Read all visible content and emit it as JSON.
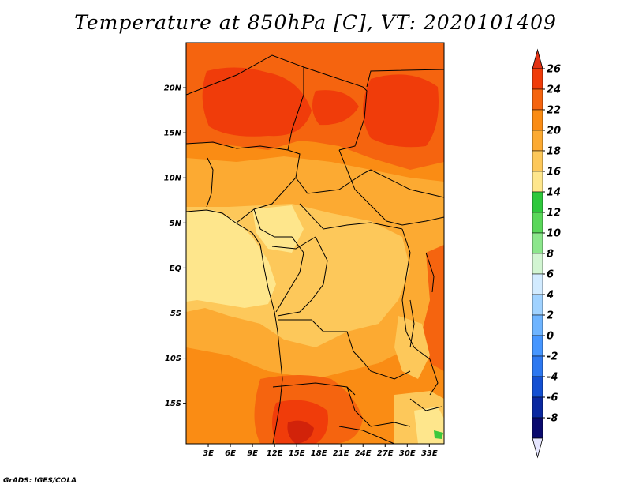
{
  "title": "Temperature at 850hPa [C], VT: 2020101409",
  "credit": "GrADS: IGES/COLA",
  "map": {
    "lon_range": [
      0,
      35
    ],
    "lat_range": [
      -19.5,
      25
    ],
    "lon_ticks": [
      {
        "value": 3,
        "label": "3E"
      },
      {
        "value": 6,
        "label": "6E"
      },
      {
        "value": 9,
        "label": "9E"
      },
      {
        "value": 12,
        "label": "12E"
      },
      {
        "value": 15,
        "label": "15E"
      },
      {
        "value": 18,
        "label": "18E"
      },
      {
        "value": 21,
        "label": "21E"
      },
      {
        "value": 24,
        "label": "24E"
      },
      {
        "value": 27,
        "label": "27E"
      },
      {
        "value": 30,
        "label": "30E"
      },
      {
        "value": 33,
        "label": "33E"
      }
    ],
    "lat_ticks": [
      {
        "value": 20,
        "label": "20N"
      },
      {
        "value": 15,
        "label": "15N"
      },
      {
        "value": 10,
        "label": "10N"
      },
      {
        "value": 5,
        "label": "5N"
      },
      {
        "value": 0,
        "label": "EQ"
      },
      {
        "value": -5,
        "label": "5S"
      },
      {
        "value": -10,
        "label": "10S"
      },
      {
        "value": -15,
        "label": "15S"
      }
    ]
  },
  "colorbar": {
    "levels": [
      26,
      24,
      22,
      20,
      18,
      16,
      14,
      12,
      10,
      8,
      6,
      4,
      2,
      0,
      -2,
      -4,
      -6,
      -8
    ],
    "labels": [
      "26",
      "24",
      "22",
      "20",
      "18",
      "16",
      "14",
      "12",
      "10",
      "8",
      "6",
      "4",
      "2",
      "0",
      "-2",
      "-4",
      "-6",
      "-8"
    ],
    "above_color": "#e23214",
    "below_color": "#e6e6ff",
    "colors": [
      "#f03c0a",
      "#f5640f",
      "#fa8c14",
      "#fcaa32",
      "#fdc85a",
      "#fee68c",
      "#2ec83c",
      "#5ad75a",
      "#8ce68c",
      "#d2f5d2",
      "#d2ebff",
      "#a0d2ff",
      "#6eb4ff",
      "#4696ff",
      "#2d78f0",
      "#1450d2",
      "#0a28a0",
      "#0a0a6e"
    ]
  },
  "palette": {
    "t16": "#fee68c",
    "t18": "#fdc85a",
    "t20": "#fcaa32",
    "t22": "#fa8c14",
    "t24": "#f5640f",
    "t26": "#f03c0a",
    "t28": "#d2230a",
    "green": "#3cc83c",
    "border": "#000000"
  }
}
